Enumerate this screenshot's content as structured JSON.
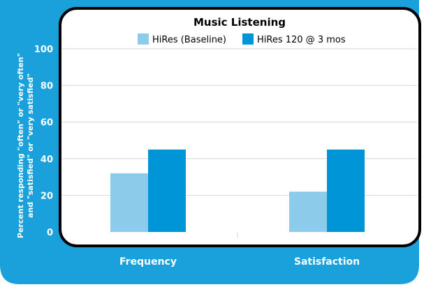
{
  "chart_data": {
    "type": "bar",
    "title": "Music Listening",
    "xlabel": "",
    "ylabel_line1": "Percent responding \"often\" or \"very often\"",
    "ylabel_line2": "and \"satisfied\" or \"very satisfied\"",
    "categories": [
      "Frequency",
      "Satisfaction"
    ],
    "series": [
      {
        "name": "HiRes (Baseline)",
        "color": "#8ccbea",
        "values": [
          32,
          22
        ]
      },
      {
        "name": "HiRes 120 @ 3 mos",
        "color": "#0095d6",
        "values": [
          45,
          45
        ]
      }
    ],
    "ylim": [
      0,
      100
    ],
    "yticks": [
      0,
      20,
      40,
      60,
      80,
      100
    ],
    "grid": true,
    "legend_position": "top-center"
  },
  "colors": {
    "panel_blue": "#1aa0da",
    "plot_background": "#ffffff",
    "plot_border": "#000000",
    "gridline": "#d6d6d6"
  }
}
